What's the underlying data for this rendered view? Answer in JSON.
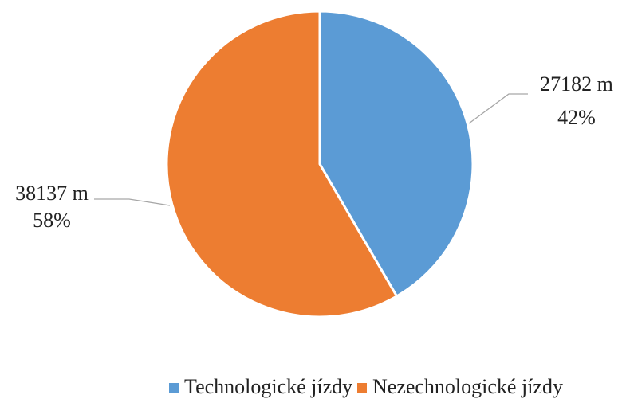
{
  "chart_data": {
    "type": "pie",
    "categories": [
      "Technologické jízdy",
      "Nezechnologické jízdy"
    ],
    "values": [
      27182,
      38137
    ],
    "value_labels": [
      "27182 m",
      "38137 m"
    ],
    "percentages": [
      42,
      58
    ],
    "percentage_labels": [
      "42%",
      "58%"
    ],
    "colors": [
      "#5b9bd5",
      "#ed7d31"
    ],
    "legend": "bottom"
  }
}
